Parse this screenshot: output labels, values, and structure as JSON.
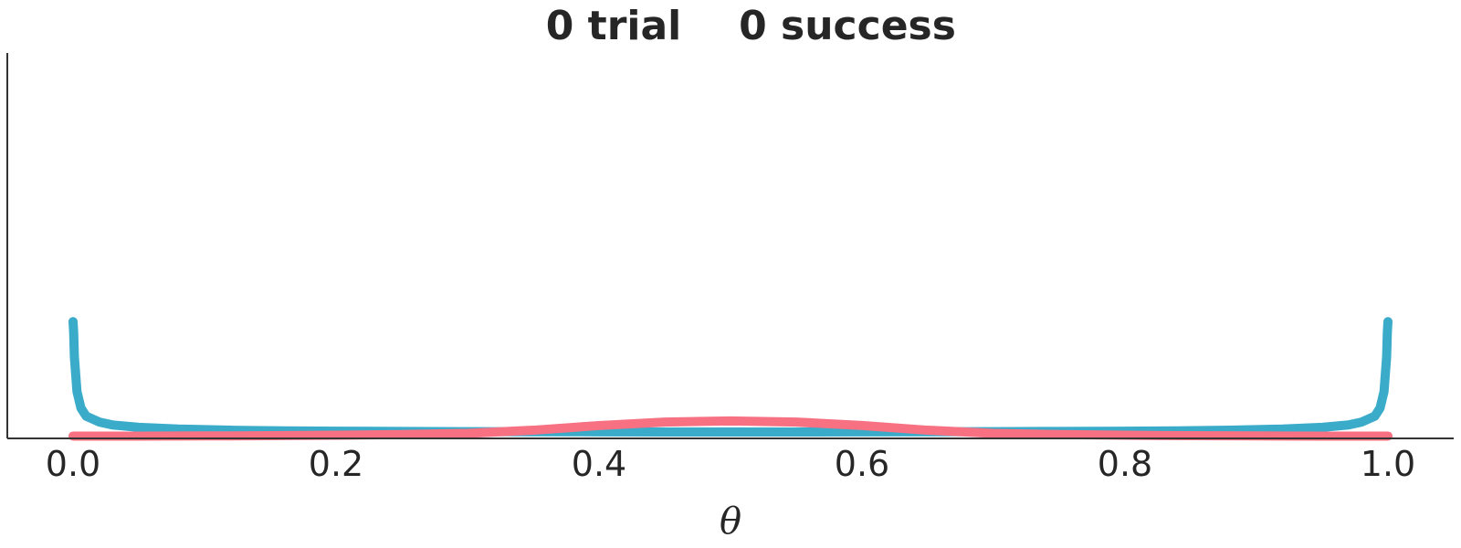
{
  "chart_data": {
    "type": "line",
    "title_left": "0 trial",
    "title_right": "0 success",
    "xlabel": "θ",
    "ylabel": "",
    "xlim": [
      -0.05,
      1.05
    ],
    "ylim": [
      0,
      3.3
    ],
    "x_ticks": [
      "0.0",
      "0.2",
      "0.4",
      "0.6",
      "0.8",
      "1.0"
    ],
    "y_ticks": [],
    "grid": false,
    "legend": false,
    "series": [
      {
        "color": "#3aabc9",
        "x": [
          0.0,
          0.0005,
          0.001,
          0.003,
          0.006,
          0.01,
          0.02,
          0.03,
          0.05,
          0.08,
          0.12,
          0.16,
          0.2,
          0.25,
          0.3,
          0.35,
          0.4,
          0.45,
          0.5,
          0.55,
          0.6,
          0.65,
          0.7,
          0.75,
          0.8,
          0.84,
          0.88,
          0.92,
          0.95,
          0.97,
          0.98,
          0.99,
          0.994,
          0.997,
          0.999,
          0.9995,
          1.0
        ],
        "y": [
          1.0,
          0.9,
          0.7,
          0.4,
          0.26,
          0.19,
          0.14,
          0.115,
          0.095,
          0.08,
          0.07,
          0.065,
          0.062,
          0.06,
          0.058,
          0.057,
          0.056,
          0.055,
          0.055,
          0.055,
          0.056,
          0.057,
          0.058,
          0.06,
          0.062,
          0.065,
          0.07,
          0.08,
          0.095,
          0.115,
          0.14,
          0.19,
          0.26,
          0.4,
          0.7,
          0.9,
          1.0
        ]
      },
      {
        "color": "#f77183",
        "x": [
          0.0,
          0.05,
          0.1,
          0.15,
          0.2,
          0.25,
          0.3,
          0.35,
          0.4,
          0.45,
          0.5,
          0.55,
          0.6,
          0.65,
          0.7,
          0.75,
          0.8,
          0.85,
          0.9,
          0.95,
          1.0
        ],
        "y": [
          0.02,
          0.02,
          0.021,
          0.023,
          0.027,
          0.033,
          0.043,
          0.07,
          0.11,
          0.14,
          0.15,
          0.14,
          0.11,
          0.07,
          0.043,
          0.033,
          0.027,
          0.023,
          0.021,
          0.02,
          0.02
        ]
      }
    ]
  }
}
